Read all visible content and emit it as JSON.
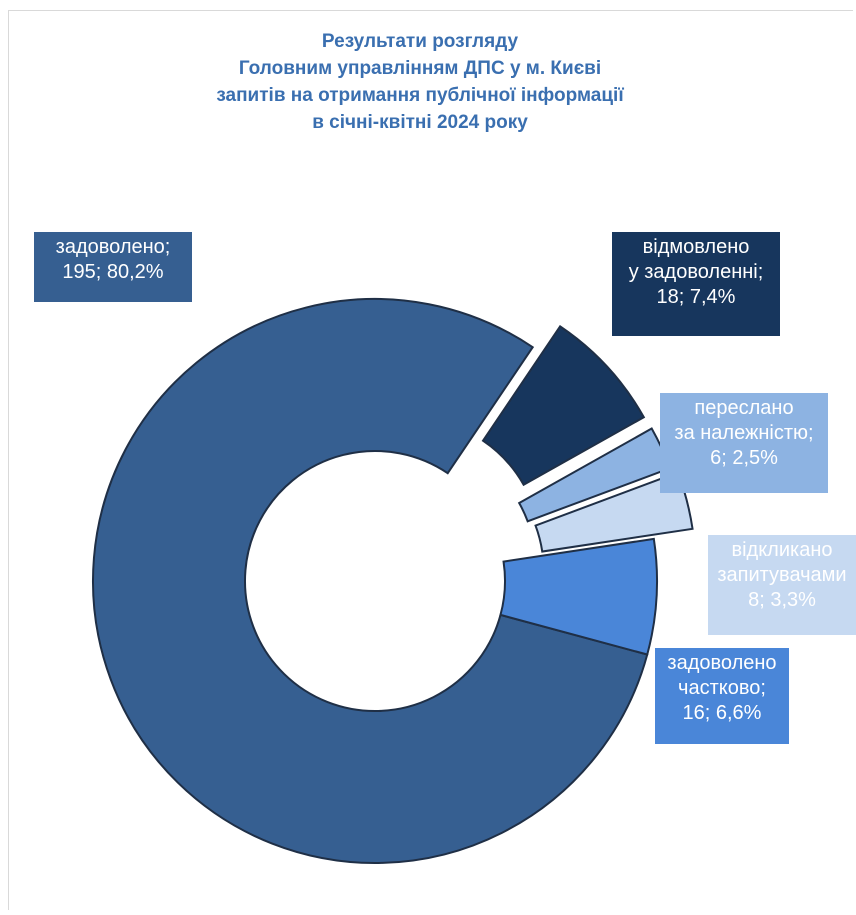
{
  "title_lines": [
    "Результати розгляду",
    "Головним управлінням ДПС  у  м. Києві",
    "запитів на отримання публічної інформації",
    "в січні-квітні 2024 року"
  ],
  "chart_data": {
    "type": "pie",
    "variant": "donut-exploded",
    "title": "Результати розгляду Головним управлінням ДПС  у  м. Києві запитів на отримання публічної інформації в січні-квітні 2024 року",
    "series": [
      {
        "slices": [
          {
            "name": "задоволено",
            "value": 195,
            "percent": 80.2,
            "color": "#365f91",
            "text_color": "#ffffff",
            "label_lines": [
              "задоволено;",
              "195; 80,2%"
            ]
          },
          {
            "name": "відмовлено у задоволенні",
            "value": 18,
            "percent": 7.4,
            "color": "#17365d",
            "text_color": "#ffffff",
            "label_lines": [
              "відмовлено",
              "у задоволенні;",
              "18; 7,4%"
            ]
          },
          {
            "name": "переслано за належністю",
            "value": 6,
            "percent": 2.5,
            "color": "#8db3e2",
            "text_color": "#ffffff",
            "label_lines": [
              "переслано",
              "за належністю;",
              "6; 2,5%"
            ]
          },
          {
            "name": "відкликано запитувачами",
            "value": 8,
            "percent": 3.3,
            "color": "#c6d9f1",
            "text_color": "#ffffff",
            "label_lines": [
              "відкликано",
              "запитувачами",
              "8; 3,3%"
            ]
          },
          {
            "name": "задоволено частково",
            "value": 16,
            "percent": 6.6,
            "color": "#4a86d8",
            "text_color": "#ffffff",
            "label_lines": [
              "задоволено",
              "частково;",
              "16; 6,6%"
            ]
          }
        ]
      }
    ]
  }
}
